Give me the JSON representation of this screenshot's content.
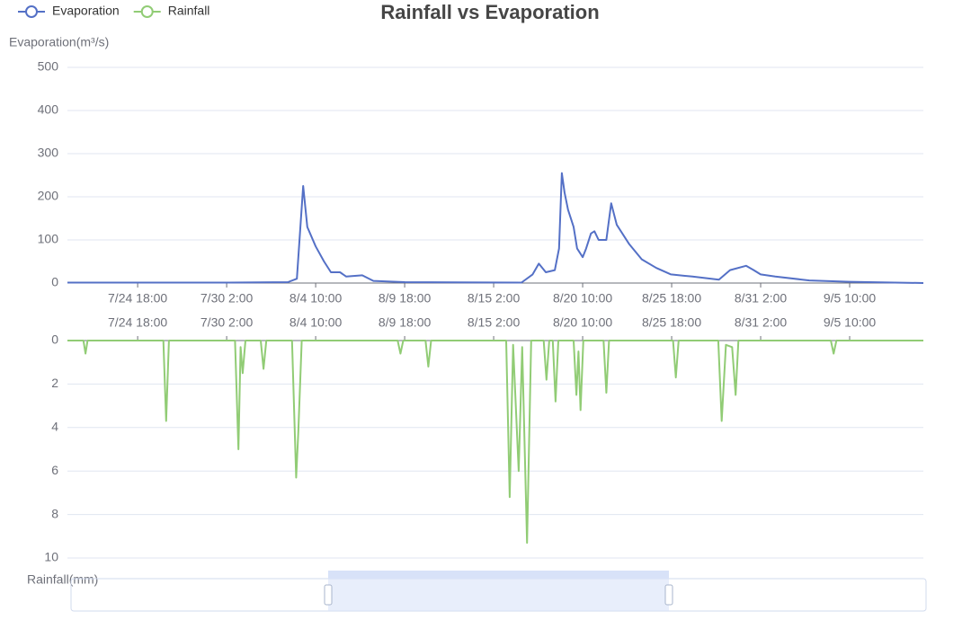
{
  "chart_data": {
    "type": "line",
    "title": "Rainfall vs Evaporation",
    "y_label": "Evaporation(m³/s)",
    "y2_label": "Rainfall(mm)",
    "xlim": [
      -101,
      1130
    ],
    "xticks": [
      {
        "value": 0,
        "label": "7/24 18:00"
      },
      {
        "value": 128,
        "label": "7/30 2:00"
      },
      {
        "value": 256,
        "label": "8/4 10:00"
      },
      {
        "value": 384,
        "label": "8/9 18:00"
      },
      {
        "value": 512,
        "label": "8/15 2:00"
      },
      {
        "value": 640,
        "label": "8/20 10:00"
      },
      {
        "value": 768,
        "label": "8/25 18:00"
      },
      {
        "value": 896,
        "label": "8/31 2:00"
      },
      {
        "value": 1024,
        "label": "9/5 10:00"
      }
    ],
    "ylim": [
      0,
      500
    ],
    "yticks": [
      0,
      100,
      200,
      300,
      400,
      500
    ],
    "y2lim": [
      0,
      10
    ],
    "y2ticks": [
      0,
      2,
      4,
      6,
      8,
      10
    ],
    "y2_inverse": true,
    "grid": true,
    "legend": "top-left",
    "series": [
      {
        "name": "Evaporation",
        "color": "#5470c6",
        "x": [
          -101,
          0,
          128,
          216,
          229,
          238,
          244,
          256,
          268,
          278,
          291,
          300,
          323,
          339,
          384,
          552,
          568,
          577,
          587,
          600,
          606,
          610,
          614,
          619,
          627,
          632,
          640,
          645,
          652,
          657,
          663,
          674,
          681,
          689,
          707,
          725,
          746,
          767,
          798,
          836,
          852,
          875,
          886,
          896,
          917,
          966,
          1024,
          1130
        ],
        "values": [
          1,
          1,
          1,
          2,
          10,
          225,
          130,
          85,
          50,
          25,
          25,
          15,
          18,
          5,
          2,
          1,
          20,
          45,
          25,
          30,
          80,
          255,
          210,
          170,
          130,
          80,
          60,
          80,
          115,
          120,
          100,
          100,
          185,
          135,
          90,
          55,
          35,
          20,
          15,
          8,
          30,
          40,
          30,
          20,
          15,
          6,
          3,
          0
        ]
      },
      {
        "name": "Rainfall",
        "color": "#91cc75",
        "axis": "y2",
        "x": [
          -101,
          -78,
          -75,
          -72,
          37,
          41,
          45,
          140,
          145,
          148,
          151,
          155,
          177,
          181,
          185,
          222,
          228,
          231,
          236,
          374,
          378,
          382,
          414,
          418,
          422,
          530,
          535,
          540,
          548,
          553,
          560,
          566,
          584,
          588,
          592,
          597,
          601,
          605,
          627,
          631,
          634,
          637,
          641,
          670,
          674,
          678,
          770,
          774,
          778,
          835,
          840,
          846,
          855,
          860,
          864,
          997,
          1001,
          1005,
          1130
        ],
        "values": [
          0,
          0,
          0.6,
          0,
          0,
          3.7,
          0,
          0,
          5.0,
          0.3,
          1.5,
          0,
          0,
          1.3,
          0,
          0,
          6.3,
          4.2,
          0,
          0,
          0.6,
          0,
          0,
          1.2,
          0,
          0,
          7.2,
          0.2,
          6.0,
          0.3,
          9.3,
          0,
          0,
          1.8,
          0,
          0,
          2.8,
          0,
          0,
          2.5,
          0.5,
          3.2,
          0,
          0,
          2.4,
          0,
          0,
          1.7,
          0,
          0,
          3.7,
          0.2,
          0.3,
          2.5,
          0,
          0,
          0.6,
          0,
          0
        ]
      }
    ]
  }
}
